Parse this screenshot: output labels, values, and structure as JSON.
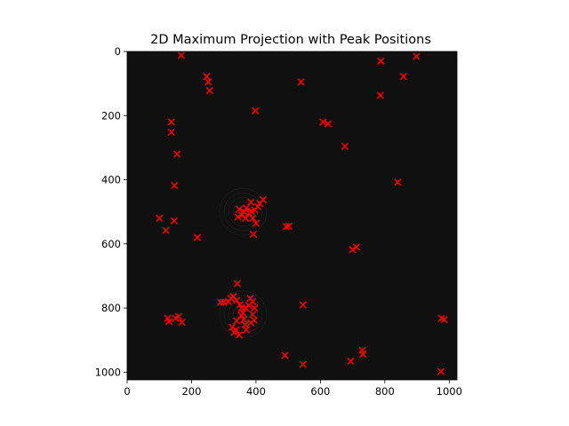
{
  "chart_data": {
    "type": "scatter",
    "title": "2D Maximum Projection with Peak Positions",
    "xlabel": "",
    "ylabel": "",
    "xlim": [
      0,
      1024
    ],
    "ylim": [
      1024,
      0
    ],
    "xticks": [
      0,
      200,
      400,
      600,
      800,
      1000
    ],
    "yticks": [
      0,
      200,
      400,
      600,
      800,
      1000
    ],
    "background_image": "dark grayscale maximum-intensity projection",
    "grid": false,
    "marker": "x",
    "marker_color": "#ff0000",
    "background_color": "#101010",
    "points": [
      [
        168,
        12
      ],
      [
        247,
        78
      ],
      [
        252,
        95
      ],
      [
        256,
        122
      ],
      [
        398,
        185
      ],
      [
        540,
        95
      ],
      [
        788,
        30
      ],
      [
        898,
        15
      ],
      [
        858,
        78
      ],
      [
        786,
        137
      ],
      [
        137,
        220
      ],
      [
        137,
        252
      ],
      [
        155,
        320
      ],
      [
        608,
        220
      ],
      [
        624,
        226
      ],
      [
        676,
        296
      ],
      [
        840,
        408
      ],
      [
        147,
        418
      ],
      [
        100,
        520
      ],
      [
        120,
        558
      ],
      [
        146,
        528
      ],
      [
        218,
        580
      ],
      [
        348,
        492
      ],
      [
        356,
        510
      ],
      [
        362,
        500
      ],
      [
        370,
        488
      ],
      [
        378,
        504
      ],
      [
        384,
        470
      ],
      [
        390,
        520
      ],
      [
        396,
        494
      ],
      [
        400,
        536
      ],
      [
        406,
        484
      ],
      [
        412,
        474
      ],
      [
        422,
        462
      ],
      [
        392,
        570
      ],
      [
        344,
        516
      ],
      [
        368,
        520
      ],
      [
        386,
        498
      ],
      [
        494,
        546
      ],
      [
        502,
        545
      ],
      [
        700,
        618
      ],
      [
        712,
        610
      ],
      [
        342,
        724
      ],
      [
        290,
        782
      ],
      [
        300,
        782
      ],
      [
        314,
        780
      ],
      [
        322,
        770
      ],
      [
        330,
        764
      ],
      [
        340,
        776
      ],
      [
        350,
        790
      ],
      [
        356,
        800
      ],
      [
        360,
        816
      ],
      [
        362,
        836
      ],
      [
        366,
        852
      ],
      [
        370,
        868
      ],
      [
        378,
        792
      ],
      [
        382,
        770
      ],
      [
        390,
        780
      ],
      [
        396,
        800
      ],
      [
        390,
        820
      ],
      [
        384,
        846
      ],
      [
        394,
        838
      ],
      [
        338,
        868
      ],
      [
        332,
        876
      ],
      [
        348,
        884
      ],
      [
        326,
        860
      ],
      [
        354,
        822
      ],
      [
        340,
        840
      ],
      [
        368,
        800
      ],
      [
        126,
        832
      ],
      [
        130,
        842
      ],
      [
        150,
        832
      ],
      [
        160,
        826
      ],
      [
        170,
        844
      ],
      [
        546,
        790
      ],
      [
        490,
        948
      ],
      [
        546,
        976
      ],
      [
        694,
        966
      ],
      [
        730,
        932
      ],
      [
        732,
        944
      ],
      [
        976,
        832
      ],
      [
        984,
        836
      ],
      [
        974,
        998
      ]
    ]
  }
}
